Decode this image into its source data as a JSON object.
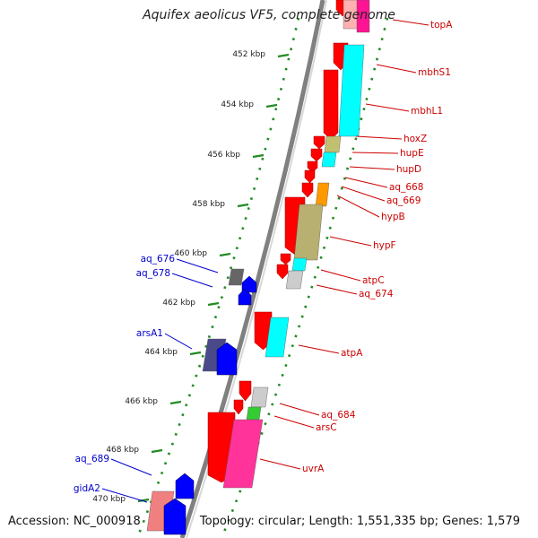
{
  "title": "Aquifex aeolicus VF5, complete genome",
  "accession": "Accession: NC_000918",
  "topology": "Topology: circular; Length: 1,551,335 bp; Genes: 1,579",
  "colors": {
    "forward_label": "#cc0000",
    "reverse_label": "#0000cc",
    "tick": "#228b22",
    "backbone": "#808080"
  },
  "ticks": [
    {
      "label": "452 kbp"
    },
    {
      "label": "454 kbp"
    },
    {
      "label": "456 kbp"
    },
    {
      "label": "458 kbp"
    },
    {
      "label": "460 kbp"
    },
    {
      "label": "462 kbp"
    },
    {
      "label": "464 kbp"
    },
    {
      "label": "466 kbp"
    },
    {
      "label": "468 kbp"
    },
    {
      "label": "470 kbp"
    }
  ],
  "forward_genes": [
    {
      "label": "topA"
    },
    {
      "label": "mbhS1"
    },
    {
      "label": "mbhL1"
    },
    {
      "label": "hoxZ"
    },
    {
      "label": "hupE"
    },
    {
      "label": "hupD"
    },
    {
      "label": "aq_668"
    },
    {
      "label": "aq_669"
    },
    {
      "label": "hypB"
    },
    {
      "label": "hypF"
    },
    {
      "label": "atpC"
    },
    {
      "label": "aq_674"
    },
    {
      "label": "atpA"
    },
    {
      "label": "aq_684"
    },
    {
      "label": "arsC"
    },
    {
      "label": "uvrA"
    }
  ],
  "reverse_genes": [
    {
      "label": "aq_676"
    },
    {
      "label": "aq_678"
    },
    {
      "label": "arsA1"
    },
    {
      "label": "aq_689"
    },
    {
      "label": "gidA2"
    }
  ]
}
